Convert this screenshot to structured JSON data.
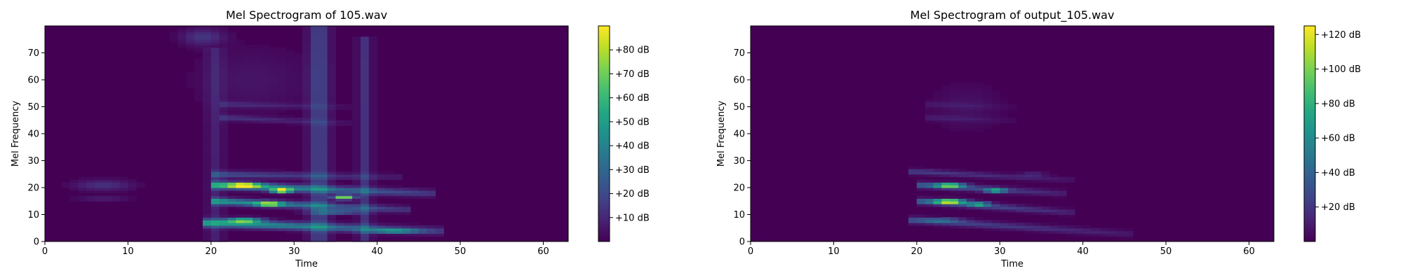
{
  "chart_data": [
    {
      "type": "heatmap",
      "title": "Mel Spectrogram of 105.wav",
      "xlabel": "Time",
      "ylabel": "Mel Frequency",
      "xlim": [
        0,
        63
      ],
      "ylim": [
        0,
        80
      ],
      "xticks": [
        "0",
        "10",
        "20",
        "30",
        "40",
        "50",
        "60"
      ],
      "yticks": [
        "0",
        "10",
        "20",
        "30",
        "40",
        "50",
        "60",
        "70"
      ],
      "colormap": "viridis",
      "colorbar": {
        "min": 0,
        "max": 90,
        "ticks": [
          10,
          20,
          30,
          40,
          50,
          60,
          70,
          80
        ],
        "labels": [
          "+10 dB",
          "+20 dB",
          "+30 dB",
          "+40 dB",
          "+50 dB",
          "+60 dB",
          "+70 dB",
          "+80 dB"
        ]
      },
      "features": [
        {
          "kind": "band",
          "t0": 20,
          "t1": 47,
          "f0": 7,
          "f1": 4,
          "h": 1.4,
          "amp": 52
        },
        {
          "kind": "band",
          "t0": 21,
          "t1": 43,
          "f0": 15,
          "f1": 12,
          "h": 1.2,
          "amp": 48
        },
        {
          "kind": "band",
          "t0": 21,
          "t1": 46,
          "f0": 21,
          "f1": 18,
          "h": 1.3,
          "amp": 52
        },
        {
          "kind": "band",
          "t0": 21,
          "t1": 42,
          "f0": 25,
          "f1": 24,
          "h": 1.2,
          "amp": 22
        },
        {
          "kind": "band",
          "t0": 22,
          "t1": 36,
          "f0": 46,
          "f1": 44,
          "h": 1.0,
          "amp": 13
        },
        {
          "kind": "band",
          "t0": 22,
          "t1": 36,
          "f0": 51,
          "f1": 50,
          "h": 1.0,
          "amp": 10
        },
        {
          "kind": "blob",
          "t": 24,
          "f": 21,
          "rt": 2.0,
          "rf": 0.9,
          "amp": 72
        },
        {
          "kind": "blob",
          "t": 28.5,
          "f": 19,
          "rt": 1.2,
          "rf": 0.8,
          "amp": 88
        },
        {
          "kind": "blob",
          "t": 27,
          "f": 14,
          "rt": 1.5,
          "rf": 0.8,
          "amp": 62
        },
        {
          "kind": "blob",
          "t": 36,
          "f": 16.5,
          "rt": 1.2,
          "rf": 0.8,
          "amp": 82
        },
        {
          "kind": "blob",
          "t": 24,
          "f": 8,
          "rt": 2.0,
          "rf": 0.9,
          "amp": 62
        },
        {
          "kind": "blob",
          "t": 42,
          "f": 4,
          "rt": 3.0,
          "rf": 0.7,
          "amp": 42
        },
        {
          "kind": "blob",
          "t": 35,
          "f": 11,
          "rt": 3.0,
          "rf": 0.8,
          "amp": 32
        },
        {
          "kind": "blob",
          "t": 7,
          "f": 21,
          "rt": 3.5,
          "rf": 2.0,
          "amp": 13
        },
        {
          "kind": "blob",
          "t": 7,
          "f": 16,
          "rt": 3.0,
          "rf": 1.0,
          "amp": 8
        },
        {
          "kind": "blob",
          "t": 19,
          "f": 76,
          "rt": 2.5,
          "rf": 3.0,
          "amp": 14
        },
        {
          "kind": "blob",
          "t": 25,
          "f": 60,
          "rt": 7.0,
          "rf": 12.0,
          "amp": 5
        },
        {
          "kind": "column",
          "t": 33,
          "w": 1.2,
          "f0": 0,
          "f1": 80,
          "amp": 18
        },
        {
          "kind": "column",
          "t": 38.5,
          "w": 0.8,
          "f0": 0,
          "f1": 76,
          "amp": 13
        },
        {
          "kind": "column",
          "t": 20.5,
          "w": 1.0,
          "f0": 0,
          "f1": 72,
          "amp": 8
        }
      ]
    },
    {
      "type": "heatmap",
      "title": "Mel Spectrogram of output_105.wav",
      "xlabel": "Time",
      "ylabel": "Mel Frequency",
      "xlim": [
        0,
        63
      ],
      "ylim": [
        0,
        80
      ],
      "xticks": [
        "0",
        "10",
        "20",
        "30",
        "40",
        "50",
        "60"
      ],
      "yticks": [
        "0",
        "10",
        "20",
        "30",
        "40",
        "50",
        "60",
        "70"
      ],
      "colormap": "viridis",
      "colorbar": {
        "min": 0,
        "max": 125,
        "ticks": [
          20,
          40,
          60,
          80,
          100,
          120
        ],
        "labels": [
          "+20 dB",
          "+40 dB",
          "+60 dB",
          "+80 dB",
          "+100 dB",
          "+120 dB"
        ]
      },
      "features": [
        {
          "kind": "band",
          "t0": 20,
          "t1": 45,
          "f0": 8,
          "f1": 3,
          "h": 1.2,
          "amp": 30
        },
        {
          "kind": "band",
          "t0": 21,
          "t1": 38,
          "f0": 15,
          "f1": 11,
          "h": 1.1,
          "amp": 42
        },
        {
          "kind": "band",
          "t0": 21,
          "t1": 37,
          "f0": 21,
          "f1": 18,
          "h": 1.1,
          "amp": 40
        },
        {
          "kind": "band",
          "t0": 20,
          "t1": 38,
          "f0": 26,
          "f1": 23,
          "h": 1.0,
          "amp": 24
        },
        {
          "kind": "band",
          "t0": 22,
          "t1": 31,
          "f0": 46,
          "f1": 45,
          "h": 1.0,
          "amp": 9
        },
        {
          "kind": "band",
          "t0": 22,
          "t1": 31,
          "f0": 51,
          "f1": 50,
          "h": 1.0,
          "amp": 7
        },
        {
          "kind": "blob",
          "t": 24,
          "f": 15,
          "rt": 1.8,
          "rf": 0.8,
          "amp": 118
        },
        {
          "kind": "blob",
          "t": 24,
          "f": 21,
          "rt": 1.6,
          "rf": 0.8,
          "amp": 98
        },
        {
          "kind": "blob",
          "t": 29.5,
          "f": 19,
          "rt": 1.2,
          "rf": 0.7,
          "amp": 78
        },
        {
          "kind": "blob",
          "t": 27.5,
          "f": 14,
          "rt": 1.2,
          "rf": 0.7,
          "amp": 70
        },
        {
          "kind": "blob",
          "t": 23,
          "f": 8,
          "rt": 2.5,
          "rf": 0.7,
          "amp": 34
        },
        {
          "kind": "blob",
          "t": 34,
          "f": 25,
          "rt": 1.5,
          "rf": 0.6,
          "amp": 20
        },
        {
          "kind": "blob",
          "t": 26,
          "f": 50,
          "rt": 4.0,
          "rf": 8.0,
          "amp": 6
        }
      ]
    }
  ]
}
